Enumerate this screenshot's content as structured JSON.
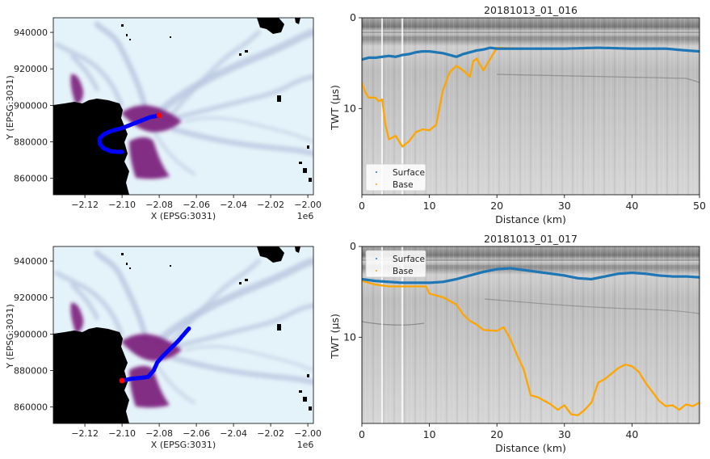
{
  "colors": {
    "ice_light": "#e4f2f9",
    "ice_flow": "#aab8d8",
    "ice_fast": "#7b1f7c",
    "ocean": "#000000",
    "track": "#0000ff",
    "track_start": "#ff0000",
    "surface": "#1f77b4",
    "base": "#ffa500",
    "radar_bg": "#c9c9c9"
  },
  "chart_data": [
    {
      "type": "scatter",
      "panel": "map-top",
      "xlabel": "X (EPSG:3031)",
      "ylabel": "Y (EPSG:3031)",
      "x_offset_label": "1e6",
      "xlim": [
        -2.137,
        -1.997
      ],
      "ylim": [
        851000,
        948000
      ],
      "x_ticks": [
        -2.12,
        -2.1,
        -2.08,
        -2.06,
        -2.04,
        -2.02,
        -2.0
      ],
      "x_tick_labels": [
        "−2.12",
        "−2.10",
        "−2.08",
        "−2.06",
        "−2.04",
        "−2.02",
        "−2.00"
      ],
      "y_ticks": [
        860000,
        880000,
        900000,
        920000,
        940000
      ],
      "y_tick_labels": [
        "860000",
        "880000",
        "900000",
        "920000",
        "940000"
      ],
      "track": {
        "x": [
          -2.08,
          -2.085,
          -2.09,
          -2.095,
          -2.1,
          -2.104,
          -2.107,
          -2.11,
          -2.112,
          -2.112,
          -2.11,
          -2.106,
          -2.102,
          -2.1
        ],
        "y": [
          894500,
          893500,
          891500,
          889500,
          887500,
          886500,
          885500,
          884000,
          882000,
          879000,
          876500,
          874800,
          874500,
          874500
        ]
      },
      "start_point": {
        "x": -2.08,
        "y": 894500
      }
    },
    {
      "type": "line",
      "panel": "radar-top",
      "title": "20181013_01_016",
      "xlabel": "Distance (km)",
      "ylabel": "TWT (μs)",
      "xlim": [
        0,
        50
      ],
      "ylim": [
        19.5,
        0
      ],
      "x_ticks": [
        0,
        10,
        20,
        30,
        40,
        50
      ],
      "x_tick_labels": [
        "0",
        "10",
        "20",
        "30",
        "40",
        "50"
      ],
      "y_ticks": [
        0,
        10
      ],
      "y_tick_labels": [
        "0",
        "10"
      ],
      "legend": {
        "placement": "lower-left",
        "entries": [
          "Surface",
          "Base"
        ]
      },
      "vlines": [
        3,
        6
      ],
      "series": [
        {
          "name": "Surface",
          "x": [
            0,
            1,
            2,
            3,
            4,
            5,
            6,
            7,
            8,
            9,
            10,
            11,
            12,
            13,
            14,
            15,
            16,
            17,
            18,
            19,
            20,
            25,
            30,
            35,
            40,
            45,
            48,
            50
          ],
          "y": [
            4.6,
            4.4,
            4.4,
            4.3,
            4.2,
            4.3,
            4.1,
            4.0,
            3.8,
            3.7,
            3.7,
            3.8,
            3.9,
            4.1,
            4.3,
            4.0,
            3.8,
            3.6,
            3.5,
            3.3,
            3.4,
            3.4,
            3.4,
            3.3,
            3.4,
            3.4,
            3.6,
            3.7
          ]
        },
        {
          "name": "Base",
          "x": [
            0,
            0.5,
            1,
            2,
            2.5,
            3,
            3.5,
            4,
            5,
            6,
            7,
            8,
            9,
            10,
            11,
            12,
            13,
            14,
            15,
            16,
            16.5,
            17,
            18,
            20,
            25,
            30,
            35,
            40,
            45,
            48,
            50
          ],
          "y": [
            7.2,
            8.2,
            8.8,
            8.8,
            9.2,
            9.0,
            11.8,
            13.4,
            13.0,
            14.2,
            13.6,
            12.6,
            12.3,
            12.4,
            11.8,
            8.0,
            6.0,
            5.3,
            5.8,
            6.5,
            4.8,
            4.5,
            5.8,
            3.3,
            3.4,
            3.4,
            3.3,
            3.4,
            3.4,
            3.6,
            3.7
          ]
        }
      ]
    },
    {
      "type": "scatter",
      "panel": "map-bottom",
      "xlabel": "X (EPSG:3031)",
      "ylabel": "Y (EPSG:3031)",
      "x_offset_label": "1e6",
      "xlim": [
        -2.137,
        -1.997
      ],
      "ylim": [
        851000,
        948000
      ],
      "x_ticks": [
        -2.12,
        -2.1,
        -2.08,
        -2.06,
        -2.04,
        -2.02,
        -2.0
      ],
      "x_tick_labels": [
        "−2.12",
        "−2.10",
        "−2.08",
        "−2.06",
        "−2.04",
        "−2.02",
        "−2.00"
      ],
      "y_ticks": [
        860000,
        880000,
        900000,
        920000,
        940000
      ],
      "y_tick_labels": [
        "860000",
        "880000",
        "900000",
        "920000",
        "940000"
      ],
      "track": {
        "x": [
          -2.1,
          -2.095,
          -2.09,
          -2.086,
          -2.083,
          -2.081,
          -2.078,
          -2.074,
          -2.07,
          -2.067,
          -2.064
        ],
        "y": [
          874500,
          875500,
          876000,
          876500,
          880000,
          884500,
          888000,
          892000,
          896000,
          899500,
          903000
        ]
      },
      "start_point": {
        "x": -2.1,
        "y": 874500
      }
    },
    {
      "type": "line",
      "panel": "radar-bottom",
      "title": "20181013_01_017",
      "xlabel": "Distance (km)",
      "ylabel": "TWT (μs)",
      "xlim": [
        0,
        50
      ],
      "ylim": [
        19.5,
        0
      ],
      "x_ticks": [
        0,
        10,
        20,
        30,
        40
      ],
      "x_tick_labels": [
        "0",
        "10",
        "20",
        "30",
        "40"
      ],
      "y_ticks": [
        0,
        10
      ],
      "y_tick_labels": [
        "0",
        "10"
      ],
      "legend": {
        "placement": "upper-left",
        "entries": [
          "Surface",
          "Base"
        ]
      },
      "vlines": [
        3,
        6
      ],
      "series": [
        {
          "name": "Surface",
          "x": [
            0,
            2,
            4,
            6,
            8,
            10,
            12,
            14,
            16,
            18,
            20,
            22,
            24,
            26,
            28,
            30,
            32,
            34,
            36,
            38,
            40,
            42,
            44,
            46,
            48,
            50
          ],
          "y": [
            3.6,
            3.8,
            3.9,
            4.0,
            4.0,
            4.0,
            3.9,
            3.6,
            3.2,
            2.8,
            2.5,
            2.4,
            2.6,
            2.8,
            3.0,
            3.2,
            3.5,
            3.6,
            3.3,
            3.0,
            2.9,
            3.0,
            3.2,
            3.3,
            3.3,
            3.4
          ]
        },
        {
          "name": "Base",
          "x": [
            0,
            2,
            4,
            6,
            8,
            9.5,
            10,
            12,
            14,
            15,
            16,
            17,
            18,
            20,
            21,
            22,
            23,
            24,
            25,
            26,
            27,
            28,
            29,
            30,
            31,
            32,
            33,
            34,
            35,
            36,
            37,
            38,
            39,
            40,
            41,
            42,
            43,
            44,
            45,
            46,
            47,
            48,
            49,
            50
          ],
          "y": [
            3.8,
            4.2,
            4.4,
            4.4,
            4.4,
            4.4,
            5.2,
            5.6,
            6.4,
            7.5,
            8.2,
            8.6,
            9.2,
            9.3,
            8.9,
            10.2,
            12.0,
            13.6,
            16.4,
            16.6,
            17.0,
            17.4,
            18.0,
            17.5,
            18.5,
            18.6,
            18.0,
            17.2,
            15.0,
            14.6,
            14.0,
            13.4,
            13.0,
            13.2,
            13.8,
            15.0,
            16.0,
            17.0,
            17.6,
            17.5,
            18.0,
            17.4,
            17.6,
            17.2
          ]
        }
      ]
    }
  ]
}
